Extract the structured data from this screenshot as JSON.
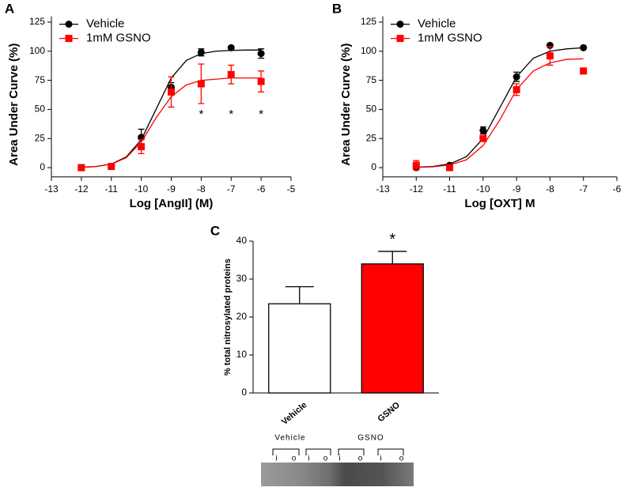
{
  "chart_data": [
    {
      "type": "line",
      "panel": "A",
      "ylabel": "Area Under Curve (%)",
      "xlabel": "Log [AngII] (M)",
      "xlim": [
        -13,
        -5
      ],
      "xticks": [
        -13,
        -12,
        -11,
        -10,
        -9,
        -8,
        -7,
        -6,
        -5
      ],
      "ylim": [
        -8,
        130
      ],
      "yticks": [
        0,
        25,
        50,
        75,
        100,
        125
      ],
      "legend": "upper left",
      "x": [
        -12,
        -11,
        -10,
        -9,
        -8,
        -7,
        -6
      ],
      "fit_x": [
        -12,
        -11.5,
        -11,
        -10.5,
        -10,
        -9.5,
        -9,
        -8.5,
        -8,
        -7.5,
        -7,
        -6.5,
        -6
      ],
      "series": [
        {
          "name": "Vehicle",
          "color": "#000000",
          "marker": "circle",
          "values": [
            0,
            1,
            26,
            69,
            99,
            103,
            98
          ],
          "errors": [
            1,
            1,
            7,
            4,
            3,
            1,
            4
          ],
          "fit": [
            0.3,
            1,
            3.1,
            9.2,
            24,
            50.5,
            77,
            92,
            98,
            100,
            100.7,
            101,
            101
          ]
        },
        {
          "name": "1mM GSNO",
          "color": "#ff0000",
          "marker": "square",
          "values": [
            0,
            1,
            18,
            65,
            72,
            80,
            74
          ],
          "errors": [
            1,
            1,
            6,
            13,
            17,
            8,
            9
          ],
          "fit": [
            0.3,
            1,
            3,
            8.5,
            22,
            43,
            61,
            71,
            75,
            76,
            77,
            77,
            77
          ]
        }
      ],
      "annotations": [
        {
          "text": "*",
          "x": -8
        },
        {
          "text": "*",
          "x": -7
        },
        {
          "text": "*",
          "x": -6
        }
      ]
    },
    {
      "type": "line",
      "panel": "B",
      "ylabel": "Area Under Curve (%)",
      "xlabel": "Log [OXT] M",
      "xlim": [
        -13,
        -6
      ],
      "xticks": [
        -13,
        -12,
        -11,
        -10,
        -9,
        -8,
        -7,
        -6
      ],
      "ylim": [
        -8,
        130
      ],
      "yticks": [
        0,
        25,
        50,
        75,
        100,
        125
      ],
      "legend": "upper left",
      "x": [
        -12,
        -11,
        -10,
        -9,
        -8,
        -7
      ],
      "fit_x": [
        -12,
        -11.5,
        -11,
        -10.5,
        -10,
        -9.5,
        -9,
        -8.5,
        -8,
        -7.5,
        -7
      ],
      "series": [
        {
          "name": "Vehicle",
          "color": "#000000",
          "marker": "circle",
          "values": [
            0,
            2,
            32,
            78,
            105,
            103
          ],
          "errors": [
            1,
            1,
            3,
            4,
            1,
            1
          ],
          "fit": [
            0.3,
            1,
            3.2,
            9.4,
            25,
            51.5,
            78,
            94,
            100,
            102,
            103
          ]
        },
        {
          "name": "1mM GSNO",
          "color": "#ff0000",
          "marker": "square",
          "values": [
            2,
            0,
            25,
            67,
            96,
            83
          ],
          "errors": [
            4,
            1,
            2,
            5,
            8,
            1
          ],
          "fit": [
            0.2,
            0.7,
            2.3,
            6.7,
            19,
            41,
            67,
            83,
            90,
            93,
            93.5
          ]
        }
      ]
    },
    {
      "type": "bar",
      "panel": "C",
      "ylabel": "% total nitrosylated proteins",
      "categories": [
        "Vehicle",
        "GSNO"
      ],
      "values": [
        23.5,
        34
      ],
      "errors": [
        4.5,
        3.3
      ],
      "colors": [
        "#ffffff",
        "#ff0000"
      ],
      "ylim": [
        0,
        40
      ],
      "yticks": [
        0,
        10,
        20,
        30,
        40
      ],
      "annotations": [
        {
          "text": "*",
          "category": "GSNO"
        }
      ],
      "blot": {
        "groups": [
          "Vehicle",
          "GSNO"
        ],
        "lanes": [
          "i",
          "o",
          "i",
          "o",
          "i",
          "o",
          "i",
          "o"
        ]
      }
    }
  ]
}
